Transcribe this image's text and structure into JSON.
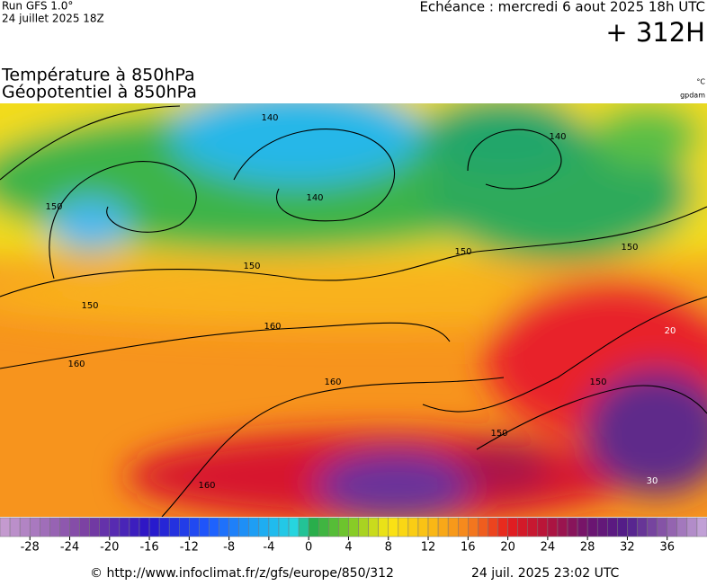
{
  "header": {
    "run": "Run GFS 1.0°",
    "run_date": "24 juillet 2025 18Z",
    "valid_time": "Echéance : mercredi 6 aout 2025 18h UTC",
    "lead": "+ 312H"
  },
  "title": {
    "line1": "Température à 850hPa",
    "line2": "Géopotentiel à 850hPa"
  },
  "units": {
    "temperature": "°C",
    "geopotential": "gpdam"
  },
  "contour_labels": [
    "140",
    "140",
    "140",
    "150",
    "150",
    "150",
    "150",
    "150",
    "160",
    "160",
    "160",
    "160",
    "150",
    "150",
    "20",
    "30"
  ],
  "colorbar": {
    "range": [
      -31,
      40
    ],
    "ticks": [
      -28,
      -24,
      -20,
      -16,
      -12,
      -8,
      -4,
      0,
      4,
      8,
      12,
      16,
      20,
      24,
      28,
      32,
      36
    ]
  },
  "footer": {
    "source": "© http://www.infoclimat.fr/z/gfs/europe/850/312",
    "generated": "24 juil. 2025 23:02 UTC"
  }
}
